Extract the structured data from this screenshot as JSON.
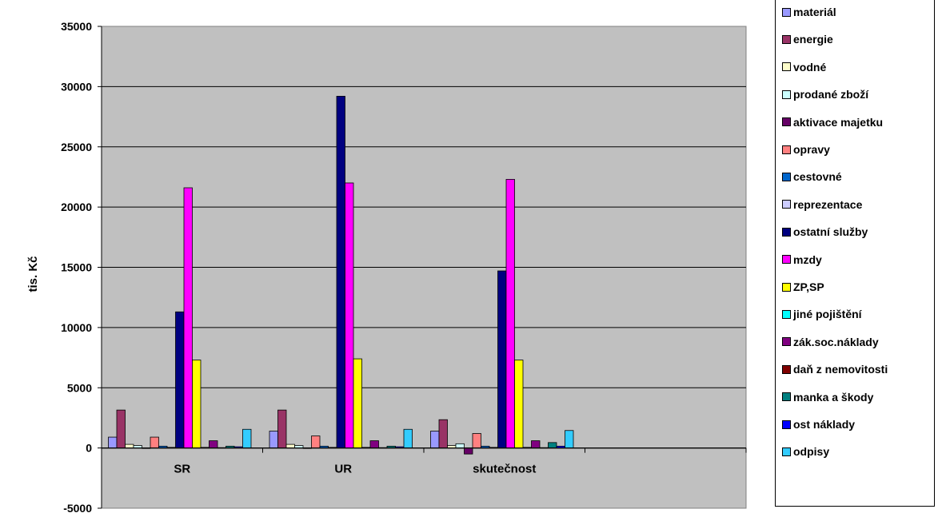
{
  "chart_data": {
    "type": "bar",
    "title": "",
    "xlabel": "",
    "ylabel": "tis. Kč",
    "ylim": [
      -5000,
      35000
    ],
    "yticks": [
      35000,
      30000,
      25000,
      20000,
      15000,
      10000,
      5000,
      0,
      -5000
    ],
    "grid": true,
    "legend_position": "right",
    "categories": [
      "SR",
      "UR",
      "skutečnost"
    ],
    "series": [
      {
        "name": "materiál",
        "color": "#9999ff",
        "values": [
          900,
          1400,
          1400
        ]
      },
      {
        "name": "energie",
        "color": "#993366",
        "values": [
          3150,
          3150,
          2350
        ]
      },
      {
        "name": "vodné",
        "color": "#ffffcc",
        "values": [
          300,
          300,
          200
        ]
      },
      {
        "name": "prodané zboží",
        "color": "#ccffff",
        "values": [
          200,
          200,
          350
        ]
      },
      {
        "name": "aktivace majetku",
        "color": "#660066",
        "values": [
          0,
          0,
          -500
        ]
      },
      {
        "name": "opravy",
        "color": "#ff8080",
        "values": [
          900,
          1000,
          1200
        ]
      },
      {
        "name": "cestovné",
        "color": "#0066cc",
        "values": [
          150,
          150,
          150
        ]
      },
      {
        "name": "reprezentace",
        "color": "#ccccff",
        "values": [
          50,
          50,
          50
        ]
      },
      {
        "name": "ostatní služby",
        "color": "#000080",
        "values": [
          11300,
          29200,
          14700
        ]
      },
      {
        "name": "mzdy",
        "color": "#ff00ff",
        "values": [
          21600,
          22000,
          22300
        ]
      },
      {
        "name": "ZP,SP",
        "color": "#ffff00",
        "values": [
          7300,
          7400,
          7300
        ]
      },
      {
        "name": "jiné pojištění",
        "color": "#00ffff",
        "values": [
          50,
          50,
          50
        ]
      },
      {
        "name": "zák.soc.náklady",
        "color": "#800080",
        "values": [
          600,
          600,
          600
        ]
      },
      {
        "name": "daň z nemovitosti",
        "color": "#800000",
        "values": [
          30,
          30,
          30
        ]
      },
      {
        "name": "manka a škody",
        "color": "#008080",
        "values": [
          150,
          150,
          450
        ]
      },
      {
        "name": "ost náklady",
        "color": "#0000ff",
        "values": [
          100,
          100,
          150
        ]
      },
      {
        "name": "odpisy",
        "color": "#33ccff",
        "values": [
          1550,
          1550,
          1450
        ]
      }
    ]
  }
}
